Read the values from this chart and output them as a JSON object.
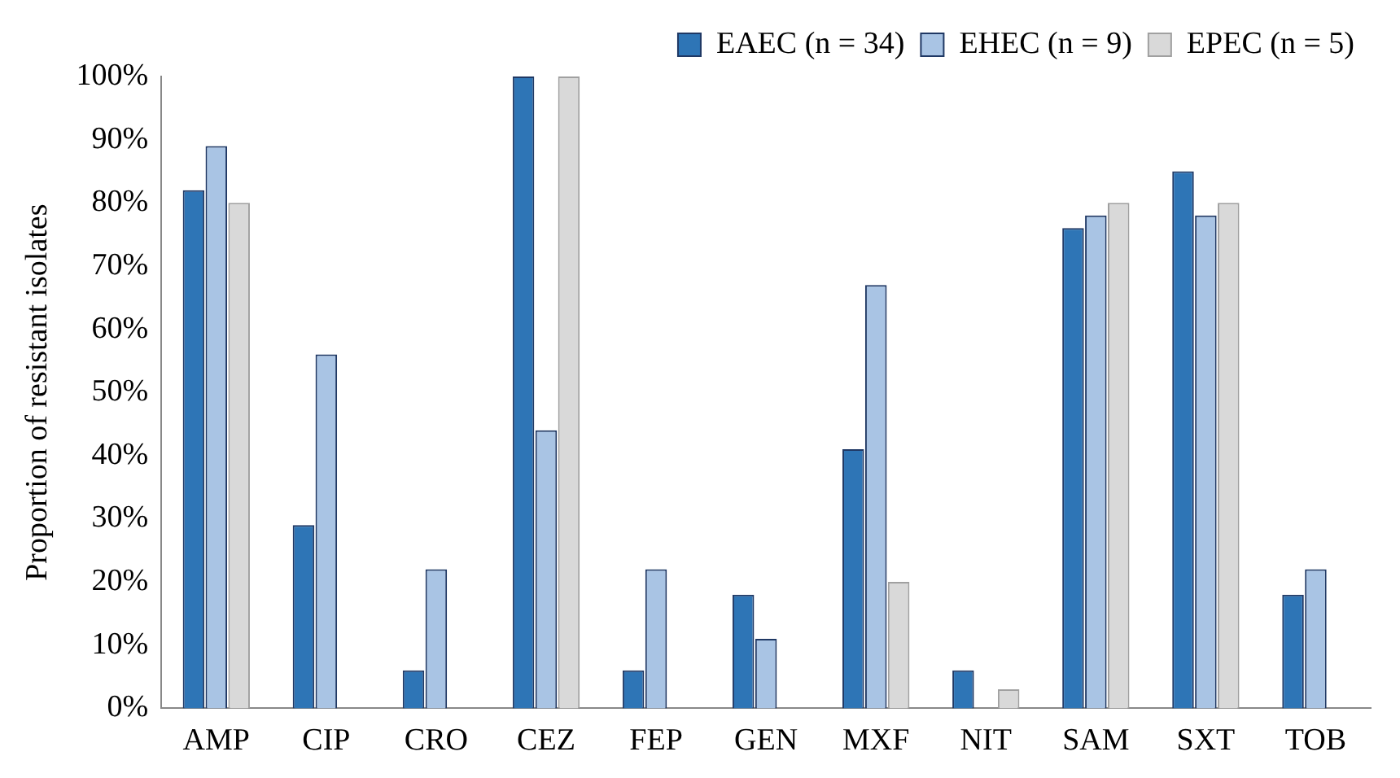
{
  "chart_data": {
    "type": "bar",
    "ylabel": "Proportion of resistant isolates",
    "categories": [
      "AMP",
      "CIP",
      "CRO",
      "CEZ",
      "FEP",
      "GEN",
      "MXF",
      "NIT",
      "SAM",
      "SXT",
      "TOB"
    ],
    "series": [
      {
        "name": "EAEC (n = 34)",
        "color": "#2e75b6",
        "values": [
          82,
          29,
          6,
          100,
          6,
          18,
          41,
          6,
          76,
          85,
          18
        ]
      },
      {
        "name": "EHEC (n = 9)",
        "color": "#a9c4e4",
        "values": [
          89,
          56,
          22,
          44,
          22,
          11,
          67,
          0,
          78,
          78,
          22
        ]
      },
      {
        "name": "EPEC (n = 5)",
        "color": "#d9d9d9",
        "values": [
          80,
          0,
          0,
          100,
          0,
          0,
          20,
          3,
          80,
          80,
          null
        ]
      }
    ],
    "ylim": [
      0,
      100
    ],
    "yticks": [
      {
        "value": 0,
        "label": "0%"
      },
      {
        "value": 10,
        "label": "10%"
      },
      {
        "value": 20,
        "label": "20%"
      },
      {
        "value": 30,
        "label": "30%"
      },
      {
        "value": 40,
        "label": "40%"
      },
      {
        "value": 50,
        "label": "50%"
      },
      {
        "value": 60,
        "label": "60%"
      },
      {
        "value": 70,
        "label": "70%"
      },
      {
        "value": 80,
        "label": "80%"
      },
      {
        "value": 90,
        "label": "90%"
      },
      {
        "value": 100,
        "label": "100%"
      }
    ],
    "grid": false,
    "legend": "top right"
  }
}
